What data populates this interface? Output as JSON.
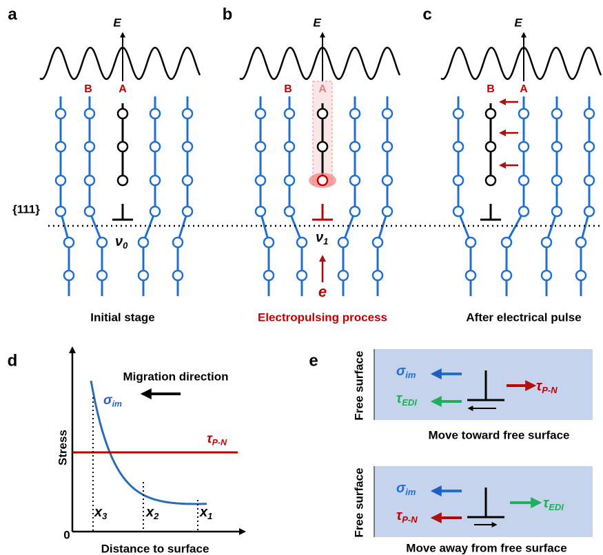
{
  "panels": {
    "labels": [
      "a",
      "b",
      "c",
      "d",
      "e"
    ]
  },
  "top": {
    "energy_axis": "E",
    "site_b": "B",
    "site_a": "A",
    "plane": "{111}",
    "nu0": {
      "symbol": "ν",
      "sub": "0"
    },
    "nu1": {
      "symbol": "ν",
      "sub": "1"
    },
    "electron": "e",
    "captions": [
      "Initial stage",
      "Electropulsing process",
      "After electrical pulse"
    ]
  },
  "stress_plot": {
    "migration": "Migration direction",
    "sigma": {
      "symbol": "σ",
      "sub": "im"
    },
    "tau": {
      "symbol": "τ",
      "sub": "P-N"
    },
    "y_label": "Stress",
    "origin": "0",
    "x_positions": [
      {
        "symbol": "x",
        "sub": "3"
      },
      {
        "symbol": "x",
        "sub": "2"
      },
      {
        "symbol": "x",
        "sub": "1"
      }
    ],
    "x_label": "Distance to surface"
  },
  "force_diagrams": [
    {
      "surface": "Free surface",
      "sigma": {
        "symbol": "σ",
        "sub": "im"
      },
      "tau_edi": {
        "symbol": "τ",
        "sub": "EDI"
      },
      "tau_pn": {
        "symbol": "τ",
        "sub": "P-N"
      },
      "caption": "Move toward free surface"
    },
    {
      "surface": "Free surface",
      "sigma": {
        "symbol": "σ",
        "sub": "im"
      },
      "tau_edi": {
        "symbol": "τ",
        "sub": "EDI"
      },
      "tau_pn": {
        "symbol": "τ",
        "sub": "P-N"
      },
      "caption": "Move away from free surface"
    }
  ]
}
